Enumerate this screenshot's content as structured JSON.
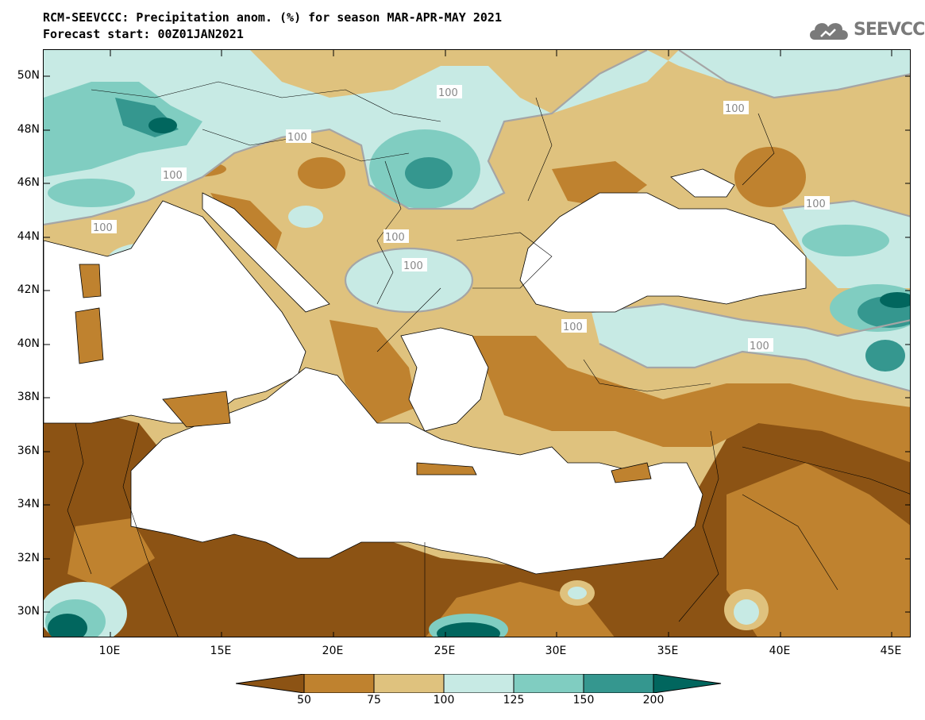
{
  "title": {
    "line1": "RCM-SEEVCCC: Precipitation anom. (%) for season MAR-APR-MAY 2021",
    "line2": "Forecast start: 00Z01JAN2021"
  },
  "logo": {
    "text": "SEEVCCC",
    "icon": "cloud-icon",
    "color": "#7a7a7a"
  },
  "map": {
    "lat_labels": [
      "50N",
      "48N",
      "46N",
      "44N",
      "42N",
      "40N",
      "38N",
      "36N",
      "34N",
      "32N",
      "30N"
    ],
    "lon_labels": [
      "10E",
      "15E",
      "20E",
      "25E",
      "30E",
      "35E",
      "40E",
      "45E"
    ],
    "contour_labels": [
      "100",
      "100",
      "100",
      "100",
      "100",
      "100",
      "100",
      "100",
      "100",
      "100"
    ],
    "colors": {
      "below_50": "#8c5314",
      "50_75": "#bf822f",
      "75_100": "#dfc27e",
      "100_125": "#c7eae4",
      "125_150": "#80cdc1",
      "150_200": "#35978f",
      "above_200": "#01665e",
      "sea": "#ffffff"
    }
  },
  "colorbar": {
    "labels": [
      "50",
      "75",
      "100",
      "125",
      "150",
      "200"
    ],
    "colors": [
      "#8c5314",
      "#bf822f",
      "#dfc27e",
      "#c7eae4",
      "#80cdc1",
      "#35978f",
      "#01665e"
    ]
  }
}
